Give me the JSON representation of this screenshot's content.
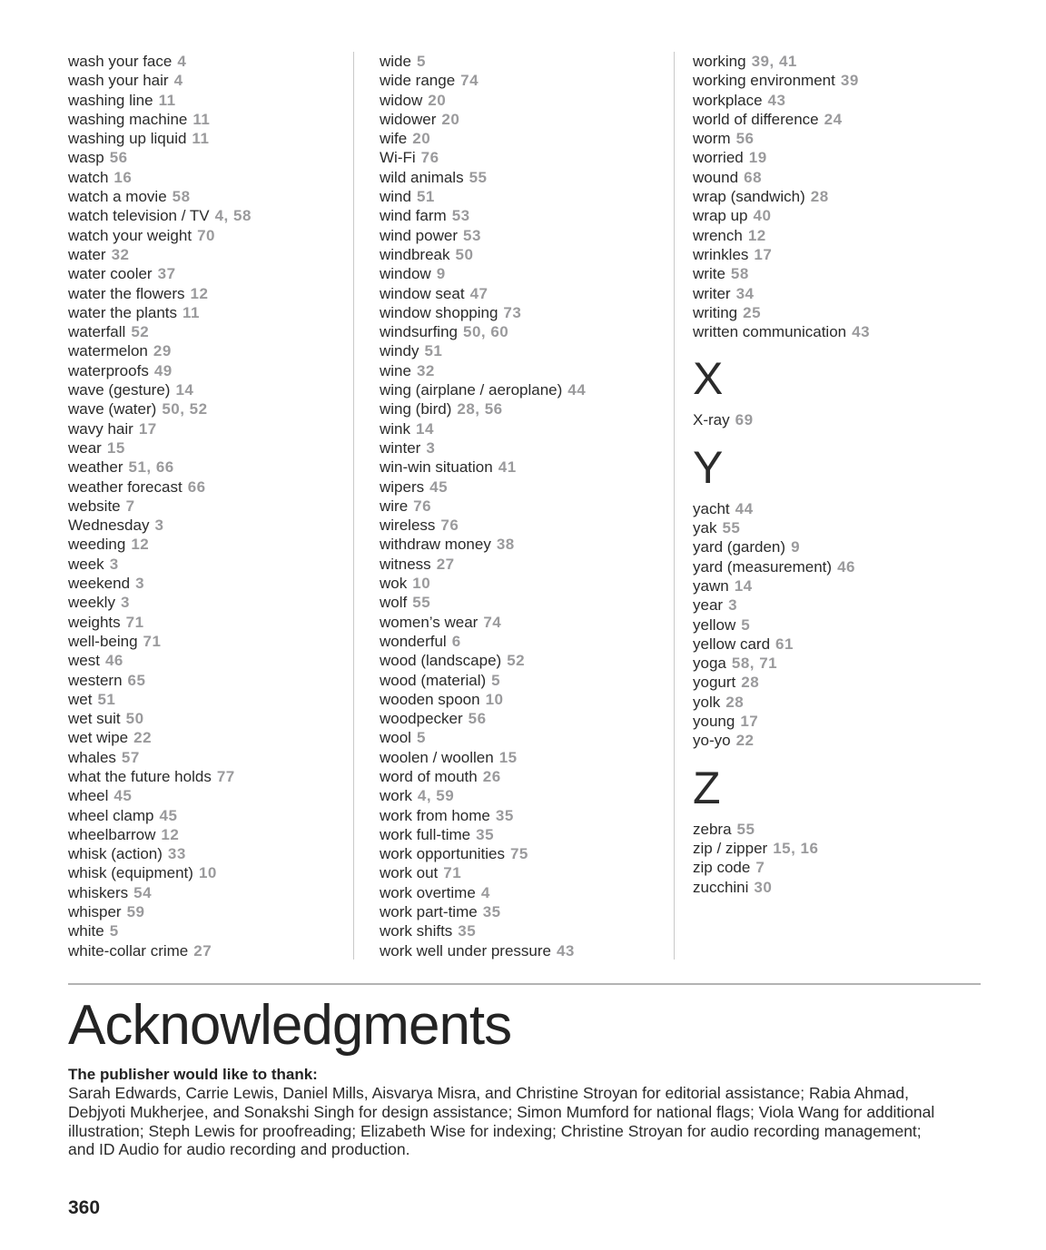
{
  "colors": {
    "entry_text": "#2b2b2b",
    "page_number_text": "#9a9a9c",
    "divider": "#c9c9c9"
  },
  "index": {
    "columns": [
      {
        "items": [
          {
            "term": "wash your face",
            "pages": "4"
          },
          {
            "term": "wash your hair",
            "pages": "4"
          },
          {
            "term": "washing line",
            "pages": "11"
          },
          {
            "term": "washing machine",
            "pages": "11"
          },
          {
            "term": "washing up liquid",
            "pages": "11"
          },
          {
            "term": "wasp",
            "pages": "56"
          },
          {
            "term": "watch",
            "pages": "16"
          },
          {
            "term": "watch a movie",
            "pages": "58"
          },
          {
            "term": "watch television / TV",
            "pages": "4, 58"
          },
          {
            "term": "watch your weight",
            "pages": "70"
          },
          {
            "term": "water",
            "pages": "32"
          },
          {
            "term": "water cooler",
            "pages": "37"
          },
          {
            "term": "water the flowers",
            "pages": "12"
          },
          {
            "term": "water the plants",
            "pages": "11"
          },
          {
            "term": "waterfall",
            "pages": "52"
          },
          {
            "term": "watermelon",
            "pages": "29"
          },
          {
            "term": "waterproofs",
            "pages": "49"
          },
          {
            "term": "wave (gesture)",
            "pages": "14"
          },
          {
            "term": "wave (water)",
            "pages": "50, 52"
          },
          {
            "term": "wavy hair",
            "pages": "17"
          },
          {
            "term": "wear",
            "pages": "15"
          },
          {
            "term": "weather",
            "pages": "51, 66"
          },
          {
            "term": "weather forecast",
            "pages": "66"
          },
          {
            "term": "website",
            "pages": "7"
          },
          {
            "term": "Wednesday",
            "pages": "3"
          },
          {
            "term": "weeding",
            "pages": "12"
          },
          {
            "term": "week",
            "pages": "3"
          },
          {
            "term": "weekend",
            "pages": "3"
          },
          {
            "term": "weekly",
            "pages": "3"
          },
          {
            "term": "weights",
            "pages": "71"
          },
          {
            "term": "well-being",
            "pages": "71"
          },
          {
            "term": "west",
            "pages": "46"
          },
          {
            "term": "western",
            "pages": "65"
          },
          {
            "term": "wet",
            "pages": "51"
          },
          {
            "term": "wet suit",
            "pages": "50"
          },
          {
            "term": "wet wipe",
            "pages": "22"
          },
          {
            "term": "whales",
            "pages": "57"
          },
          {
            "term": "what the future holds",
            "pages": "77"
          },
          {
            "term": "wheel",
            "pages": "45"
          },
          {
            "term": "wheel clamp",
            "pages": "45"
          },
          {
            "term": "wheelbarrow",
            "pages": "12"
          },
          {
            "term": "whisk (action)",
            "pages": "33"
          },
          {
            "term": "whisk (equipment)",
            "pages": "10"
          },
          {
            "term": "whiskers",
            "pages": "54"
          },
          {
            "term": "whisper",
            "pages": "59"
          },
          {
            "term": "white",
            "pages": "5"
          },
          {
            "term": "white-collar crime",
            "pages": "27"
          }
        ]
      },
      {
        "items": [
          {
            "term": "wide",
            "pages": "5"
          },
          {
            "term": "wide range",
            "pages": "74"
          },
          {
            "term": "widow",
            "pages": "20"
          },
          {
            "term": "widower",
            "pages": "20"
          },
          {
            "term": "wife",
            "pages": "20"
          },
          {
            "term": "Wi-Fi",
            "pages": "76"
          },
          {
            "term": "wild animals",
            "pages": "55"
          },
          {
            "term": "wind",
            "pages": "51"
          },
          {
            "term": "wind farm",
            "pages": "53"
          },
          {
            "term": "wind power",
            "pages": "53"
          },
          {
            "term": "windbreak",
            "pages": "50"
          },
          {
            "term": "window",
            "pages": "9"
          },
          {
            "term": "window seat",
            "pages": "47"
          },
          {
            "term": "window shopping",
            "pages": "73"
          },
          {
            "term": "windsurfing",
            "pages": "50, 60"
          },
          {
            "term": "windy",
            "pages": "51"
          },
          {
            "term": "wine",
            "pages": "32"
          },
          {
            "term": "wing (airplane / aeroplane)",
            "pages": "44"
          },
          {
            "term": "wing (bird)",
            "pages": "28, 56"
          },
          {
            "term": "wink",
            "pages": "14"
          },
          {
            "term": "winter",
            "pages": "3"
          },
          {
            "term": "win-win situation",
            "pages": "41"
          },
          {
            "term": "wipers",
            "pages": "45"
          },
          {
            "term": "wire",
            "pages": "76"
          },
          {
            "term": "wireless",
            "pages": "76"
          },
          {
            "term": "withdraw money",
            "pages": "38"
          },
          {
            "term": "witness",
            "pages": "27"
          },
          {
            "term": "wok",
            "pages": "10"
          },
          {
            "term": "wolf",
            "pages": "55"
          },
          {
            "term": "women’s wear",
            "pages": "74"
          },
          {
            "term": "wonderful",
            "pages": "6"
          },
          {
            "term": "wood (landscape)",
            "pages": "52"
          },
          {
            "term": "wood (material)",
            "pages": "5"
          },
          {
            "term": "wooden spoon",
            "pages": "10"
          },
          {
            "term": "woodpecker",
            "pages": "56"
          },
          {
            "term": "wool",
            "pages": "5"
          },
          {
            "term": "woolen / woollen",
            "pages": "15"
          },
          {
            "term": "word of mouth",
            "pages": "26"
          },
          {
            "term": "work",
            "pages": "4, 59"
          },
          {
            "term": "work from home",
            "pages": "35"
          },
          {
            "term": "work full-time",
            "pages": "35"
          },
          {
            "term": "work opportunities",
            "pages": "75"
          },
          {
            "term": "work out",
            "pages": "71"
          },
          {
            "term": "work overtime",
            "pages": "4"
          },
          {
            "term": "work part-time",
            "pages": "35"
          },
          {
            "term": "work shifts",
            "pages": "35"
          },
          {
            "term": "work well under pressure",
            "pages": "43"
          }
        ]
      },
      {
        "items": [
          {
            "term": "working",
            "pages": "39, 41"
          },
          {
            "term": "working environment",
            "pages": "39"
          },
          {
            "term": "workplace",
            "pages": "43"
          },
          {
            "term": "world of difference",
            "pages": "24"
          },
          {
            "term": "worm",
            "pages": "56"
          },
          {
            "term": "worried",
            "pages": "19"
          },
          {
            "term": "wound",
            "pages": "68"
          },
          {
            "term": "wrap (sandwich)",
            "pages": "28"
          },
          {
            "term": "wrap up",
            "pages": "40"
          },
          {
            "term": "wrench",
            "pages": "12"
          },
          {
            "term": "wrinkles",
            "pages": "17"
          },
          {
            "term": "write",
            "pages": "58"
          },
          {
            "term": "writer",
            "pages": "34"
          },
          {
            "term": "writing",
            "pages": "25"
          },
          {
            "term": "written communication",
            "pages": "43"
          },
          {
            "letter": "X"
          },
          {
            "term": "X-ray",
            "pages": "69"
          },
          {
            "letter": "Y"
          },
          {
            "term": "yacht",
            "pages": "44"
          },
          {
            "term": "yak",
            "pages": "55"
          },
          {
            "term": "yard (garden)",
            "pages": "9"
          },
          {
            "term": "yard (measurement)",
            "pages": "46"
          },
          {
            "term": "yawn",
            "pages": "14"
          },
          {
            "term": "year",
            "pages": "3"
          },
          {
            "term": "yellow",
            "pages": "5"
          },
          {
            "term": "yellow card",
            "pages": "61"
          },
          {
            "term": "yoga",
            "pages": "58, 71"
          },
          {
            "term": "yogurt",
            "pages": "28"
          },
          {
            "term": "yolk",
            "pages": "28"
          },
          {
            "term": "young",
            "pages": "17"
          },
          {
            "term": "yo-yo",
            "pages": "22"
          },
          {
            "letter": "Z"
          },
          {
            "term": "zebra",
            "pages": "55"
          },
          {
            "term": "zip / zipper",
            "pages": "15, 16"
          },
          {
            "term": "zip code",
            "pages": "7"
          },
          {
            "term": "zucchini",
            "pages": "30"
          }
        ]
      }
    ]
  },
  "acknowledgments": {
    "title": "Acknowledgments",
    "intro_heading": "The publisher would like to thank:",
    "body": "Sarah Edwards, Carrie Lewis, Daniel Mills, Aisvarya Misra, and Christine Stroyan for editorial assistance; Rabia Ahmad, Debjyoti Mukherjee, and Sonakshi Singh for design assistance; Simon Mumford for national flags; Viola Wang for additional illustration; Steph Lewis for proofreading; Elizabeth Wise for indexing; Christine Stroyan for audio recording management; and ID Audio for audio recording and production."
  },
  "page": {
    "number": "360"
  }
}
